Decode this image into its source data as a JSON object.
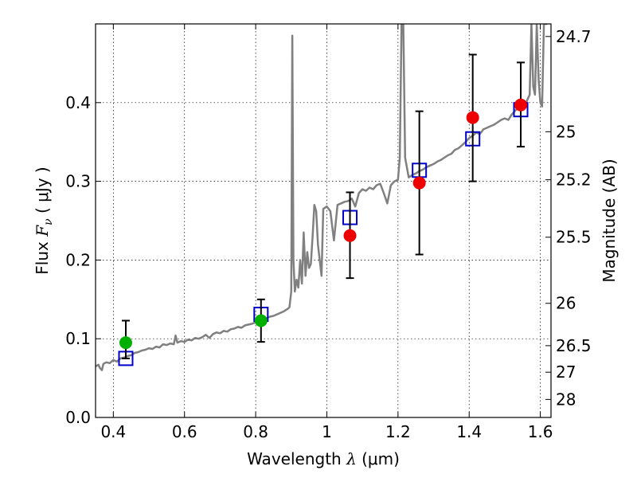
{
  "chart_data": {
    "type": "scatter",
    "xlabel": {
      "prefix": "Wavelength  ",
      "symbol": "λ",
      "unit": " (μm)"
    },
    "ylabel": {
      "prefix": "Flux  ",
      "symbol": "F",
      "subscript": "ν",
      "unit": "  ( μJy )"
    },
    "y2label": "Magnitude (AB)",
    "xlim": [
      0.35,
      1.63
    ],
    "ylim": [
      0.0,
      0.5
    ],
    "xticks": [
      0.4,
      0.6,
      0.8,
      1.0,
      1.2,
      1.4,
      1.6
    ],
    "xtick_labels": [
      "0.4",
      "0.6",
      "0.8",
      "1",
      "1.2",
      "1.4",
      "1.6"
    ],
    "yticks": [
      0.0,
      0.1,
      0.2,
      0.3,
      0.4
    ],
    "ytick_labels": [
      "0.0",
      "0.1",
      "0.2",
      "0.3",
      "0.4"
    ],
    "y2ticks": [
      {
        "mag": "24.7",
        "flux": 0.484
      },
      {
        "mag": "25",
        "flux": 0.363
      },
      {
        "mag": "25.2",
        "flux": 0.302
      },
      {
        "mag": "25.5",
        "flux": 0.229
      },
      {
        "mag": "26",
        "flux": 0.145
      },
      {
        "mag": "26.5",
        "flux": 0.0912
      },
      {
        "mag": "27",
        "flux": 0.0575
      },
      {
        "mag": "28",
        "flux": 0.0229
      }
    ],
    "grid": true,
    "colors": {
      "spectrum": "#808080",
      "model_box": "#0000cc",
      "ground": "#00b000",
      "space": "#ee0000",
      "errorbar": "#000000",
      "grid": "#000000"
    },
    "series": [
      {
        "type": "line",
        "points": [
          [
            0.35,
            0.065
          ],
          [
            0.358,
            0.067
          ],
          [
            0.362,
            0.063
          ],
          [
            0.368,
            0.06
          ],
          [
            0.372,
            0.068
          ],
          [
            0.38,
            0.07
          ],
          [
            0.39,
            0.069
          ],
          [
            0.4,
            0.073
          ],
          [
            0.41,
            0.071
          ],
          [
            0.42,
            0.075
          ],
          [
            0.43,
            0.076
          ],
          [
            0.44,
            0.078
          ],
          [
            0.45,
            0.079
          ],
          [
            0.46,
            0.082
          ],
          [
            0.47,
            0.083
          ],
          [
            0.48,
            0.085
          ],
          [
            0.49,
            0.086
          ],
          [
            0.5,
            0.088
          ],
          [
            0.51,
            0.087
          ],
          [
            0.52,
            0.09
          ],
          [
            0.53,
            0.089
          ],
          [
            0.54,
            0.093
          ],
          [
            0.55,
            0.092
          ],
          [
            0.56,
            0.094
          ],
          [
            0.57,
            0.093
          ],
          [
            0.575,
            0.104
          ],
          [
            0.58,
            0.095
          ],
          [
            0.59,
            0.097
          ],
          [
            0.6,
            0.096
          ],
          [
            0.61,
            0.099
          ],
          [
            0.62,
            0.098
          ],
          [
            0.63,
            0.101
          ],
          [
            0.64,
            0.1
          ],
          [
            0.65,
            0.102
          ],
          [
            0.66,
            0.105
          ],
          [
            0.67,
            0.101
          ],
          [
            0.68,
            0.106
          ],
          [
            0.69,
            0.108
          ],
          [
            0.7,
            0.107
          ],
          [
            0.71,
            0.11
          ],
          [
            0.72,
            0.109
          ],
          [
            0.73,
            0.112
          ],
          [
            0.74,
            0.113
          ],
          [
            0.75,
            0.115
          ],
          [
            0.76,
            0.114
          ],
          [
            0.77,
            0.117
          ],
          [
            0.78,
            0.118
          ],
          [
            0.79,
            0.119
          ],
          [
            0.8,
            0.121
          ],
          [
            0.81,
            0.123
          ],
          [
            0.82,
            0.124
          ],
          [
            0.83,
            0.126
          ],
          [
            0.84,
            0.128
          ],
          [
            0.85,
            0.129
          ],
          [
            0.86,
            0.131
          ],
          [
            0.87,
            0.133
          ],
          [
            0.88,
            0.135
          ],
          [
            0.89,
            0.138
          ],
          [
            0.895,
            0.14
          ],
          [
            0.9,
            0.16
          ],
          [
            0.903,
            0.485
          ],
          [
            0.906,
            0.2
          ],
          [
            0.91,
            0.16
          ],
          [
            0.915,
            0.175
          ],
          [
            0.92,
            0.165
          ],
          [
            0.925,
            0.2
          ],
          [
            0.93,
            0.17
          ],
          [
            0.935,
            0.235
          ],
          [
            0.94,
            0.18
          ],
          [
            0.945,
            0.21
          ],
          [
            0.95,
            0.19
          ],
          [
            0.955,
            0.195
          ],
          [
            0.96,
            0.23
          ],
          [
            0.965,
            0.27
          ],
          [
            0.97,
            0.262
          ],
          [
            0.975,
            0.22
          ],
          [
            0.98,
            0.2
          ],
          [
            0.985,
            0.18
          ],
          [
            0.99,
            0.265
          ],
          [
            1.0,
            0.268
          ],
          [
            1.01,
            0.262
          ],
          [
            1.02,
            0.225
          ],
          [
            1.03,
            0.27
          ],
          [
            1.04,
            0.272
          ],
          [
            1.05,
            0.274
          ],
          [
            1.06,
            0.275
          ],
          [
            1.07,
            0.278
          ],
          [
            1.08,
            0.268
          ],
          [
            1.09,
            0.285
          ],
          [
            1.1,
            0.29
          ],
          [
            1.11,
            0.288
          ],
          [
            1.12,
            0.292
          ],
          [
            1.13,
            0.29
          ],
          [
            1.14,
            0.295
          ],
          [
            1.15,
            0.297
          ],
          [
            1.16,
            0.285
          ],
          [
            1.17,
            0.272
          ],
          [
            1.18,
            0.295
          ],
          [
            1.19,
            0.3
          ],
          [
            1.2,
            0.302
          ],
          [
            1.205,
            0.33
          ],
          [
            1.21,
            0.5
          ],
          [
            1.215,
            0.5
          ],
          [
            1.22,
            0.33
          ],
          [
            1.23,
            0.305
          ],
          [
            1.24,
            0.308
          ],
          [
            1.25,
            0.31
          ],
          [
            1.26,
            0.313
          ],
          [
            1.27,
            0.315
          ],
          [
            1.28,
            0.318
          ],
          [
            1.29,
            0.32
          ],
          [
            1.3,
            0.322
          ],
          [
            1.31,
            0.325
          ],
          [
            1.32,
            0.327
          ],
          [
            1.33,
            0.33
          ],
          [
            1.34,
            0.333
          ],
          [
            1.35,
            0.335
          ],
          [
            1.36,
            0.34
          ],
          [
            1.37,
            0.342
          ],
          [
            1.38,
            0.346
          ],
          [
            1.39,
            0.35
          ],
          [
            1.4,
            0.355
          ],
          [
            1.41,
            0.358
          ],
          [
            1.42,
            0.362
          ],
          [
            1.43,
            0.36
          ],
          [
            1.44,
            0.366
          ],
          [
            1.45,
            0.368
          ],
          [
            1.46,
            0.37
          ],
          [
            1.47,
            0.372
          ],
          [
            1.48,
            0.375
          ],
          [
            1.49,
            0.378
          ],
          [
            1.5,
            0.38
          ],
          [
            1.51,
            0.378
          ],
          [
            1.52,
            0.385
          ],
          [
            1.53,
            0.39
          ],
          [
            1.54,
            0.395
          ],
          [
            1.55,
            0.398
          ],
          [
            1.56,
            0.4
          ],
          [
            1.57,
            0.41
          ],
          [
            1.575,
            0.5
          ],
          [
            1.58,
            0.42
          ],
          [
            1.585,
            0.41
          ],
          [
            1.59,
            0.5
          ],
          [
            1.595,
            0.43
          ],
          [
            1.6,
            0.4
          ],
          [
            1.605,
            0.395
          ],
          [
            1.61,
            0.5
          ],
          [
            1.62,
            0.5
          ]
        ]
      },
      {
        "type": "square",
        "points": [
          [
            0.435,
            0.075
          ],
          [
            0.815,
            0.131
          ],
          [
            1.065,
            0.254
          ],
          [
            1.26,
            0.314
          ],
          [
            1.41,
            0.354
          ],
          [
            1.545,
            0.391
          ]
        ]
      },
      {
        "type": "circle",
        "points": [
          {
            "x": 0.435,
            "y": 0.095,
            "err_lo": 0.075,
            "err_hi": 0.123
          },
          {
            "x": 0.815,
            "y": 0.123,
            "err_lo": 0.096,
            "err_hi": 0.15
          }
        ]
      },
      {
        "type": "circle",
        "points": [
          {
            "x": 1.065,
            "y": 0.231,
            "err_lo": 0.177,
            "err_hi": 0.286
          },
          {
            "x": 1.26,
            "y": 0.298,
            "err_lo": 0.207,
            "err_hi": 0.389
          },
          {
            "x": 1.41,
            "y": 0.381,
            "err_lo": 0.3,
            "err_hi": 0.461
          },
          {
            "x": 1.545,
            "y": 0.397,
            "err_lo": 0.344,
            "err_hi": 0.451
          }
        ]
      }
    ]
  }
}
